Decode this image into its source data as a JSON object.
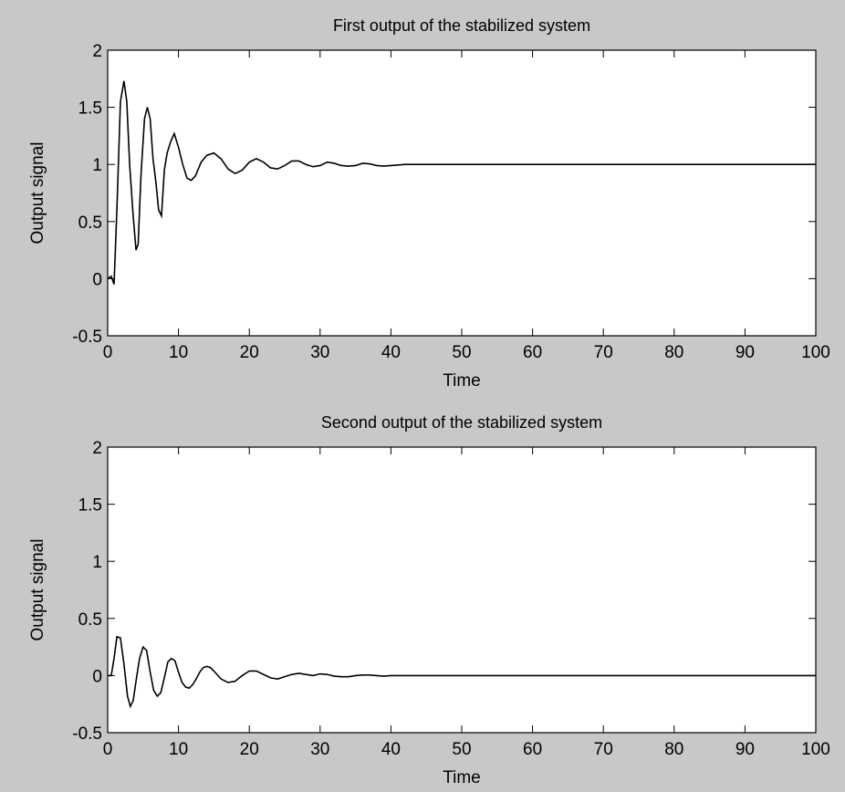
{
  "figure": {
    "background": "#c8c8c8",
    "plot_background": "#ffffff",
    "line_color": "#000000"
  },
  "chart_data": [
    {
      "type": "line",
      "title": "First output of the stabilized system",
      "xlabel": "Time",
      "ylabel": "Output signal",
      "xlim": [
        0,
        100
      ],
      "ylim": [
        -0.5,
        2
      ],
      "grid": false,
      "xticks": [
        0,
        10,
        20,
        30,
        40,
        50,
        60,
        70,
        80,
        90,
        100
      ],
      "xtick_labels": [
        "0",
        "10",
        "20",
        "30",
        "40",
        "50",
        "60",
        "70",
        "80",
        "90",
        "100"
      ],
      "yticks": [
        -0.5,
        0,
        0.5,
        1,
        1.5,
        2
      ],
      "ytick_labels": [
        "-0.5",
        "0",
        "0.5",
        "1",
        "1.5",
        "2"
      ],
      "series": [
        {
          "x": [
            0,
            0.5,
            0.9,
            1.3,
            1.8,
            2.3,
            2.7,
            3.1,
            3.6,
            4.0,
            4.3,
            4.7,
            5.2,
            5.6,
            6.0,
            6.4,
            6.8,
            7.2,
            7.6,
            8.0,
            8.4,
            8.9,
            9.4,
            10.0,
            10.6,
            11.2,
            11.8,
            12.4,
            13.2,
            14.0,
            15.0,
            16.0,
            17.0,
            18.0,
            19.0,
            20.0,
            21.0,
            22.0,
            23.0,
            24.0,
            25.0,
            26.0,
            27.0,
            28.0,
            29.0,
            30.0,
            31.0,
            32.0,
            33.0,
            34.0,
            35.0,
            36.0,
            37.0,
            38.0,
            39.0,
            40.0,
            42.0,
            50.0,
            60.0,
            70.0,
            80.0,
            90.0,
            100.0
          ],
          "y": [
            0,
            0.02,
            -0.05,
            0.6,
            1.55,
            1.73,
            1.55,
            1.0,
            0.55,
            0.25,
            0.3,
            0.9,
            1.4,
            1.5,
            1.4,
            1.05,
            0.85,
            0.6,
            0.55,
            0.95,
            1.1,
            1.2,
            1.27,
            1.15,
            1.0,
            0.88,
            0.86,
            0.9,
            1.02,
            1.08,
            1.1,
            1.05,
            0.96,
            0.92,
            0.95,
            1.02,
            1.05,
            1.02,
            0.97,
            0.96,
            0.99,
            1.03,
            1.03,
            1.0,
            0.98,
            0.99,
            1.02,
            1.01,
            0.99,
            0.985,
            0.99,
            1.01,
            1.005,
            0.99,
            0.985,
            0.99,
            1.0,
            1.0,
            1.0,
            1.0,
            1.0,
            1.0,
            1.0
          ]
        }
      ]
    },
    {
      "type": "line",
      "title": "Second output of the stabilized system",
      "xlabel": "Time",
      "ylabel": "Output signal",
      "xlim": [
        0,
        100
      ],
      "ylim": [
        -0.5,
        2
      ],
      "grid": false,
      "xticks": [
        0,
        10,
        20,
        30,
        40,
        50,
        60,
        70,
        80,
        90,
        100
      ],
      "xtick_labels": [
        "0",
        "10",
        "20",
        "30",
        "40",
        "50",
        "60",
        "70",
        "80",
        "90",
        "100"
      ],
      "yticks": [
        -0.5,
        0,
        0.5,
        1,
        1.5,
        2
      ],
      "ytick_labels": [
        "-0.5",
        "0",
        "0.5",
        "1",
        "1.5",
        "2"
      ],
      "series": [
        {
          "x": [
            0,
            0.5,
            0.9,
            1.3,
            1.8,
            2.3,
            2.8,
            3.2,
            3.6,
            4.0,
            4.5,
            5.0,
            5.5,
            6.0,
            6.5,
            7.0,
            7.5,
            8.0,
            8.5,
            9.0,
            9.5,
            10.0,
            10.5,
            11.0,
            11.5,
            12.0,
            12.5,
            13.0,
            13.5,
            14.0,
            14.5,
            15.0,
            16.0,
            17.0,
            18.0,
            19.0,
            20.0,
            21.0,
            22.0,
            23.0,
            24.0,
            25.0,
            26.0,
            27.0,
            28.0,
            29.0,
            30.0,
            31.0,
            32.0,
            33.0,
            34.0,
            35.0,
            36.0,
            37.0,
            38.0,
            39.0,
            40.0,
            50.0,
            60.0,
            70.0,
            80.0,
            90.0,
            100.0
          ],
          "y": [
            0,
            0.0,
            0.15,
            0.34,
            0.33,
            0.1,
            -0.18,
            -0.27,
            -0.22,
            -0.05,
            0.15,
            0.25,
            0.22,
            0.03,
            -0.13,
            -0.18,
            -0.15,
            -0.02,
            0.12,
            0.15,
            0.13,
            0.03,
            -0.06,
            -0.1,
            -0.11,
            -0.08,
            -0.03,
            0.03,
            0.07,
            0.08,
            0.07,
            0.04,
            -0.03,
            -0.06,
            -0.05,
            0.0,
            0.04,
            0.04,
            0.01,
            -0.02,
            -0.03,
            -0.01,
            0.01,
            0.02,
            0.01,
            0.0,
            0.015,
            0.01,
            -0.005,
            -0.01,
            -0.01,
            0.0,
            0.005,
            0.005,
            0.0,
            -0.005,
            0.0,
            0.0,
            0.0,
            0.0,
            0.0,
            0.0,
            0.0
          ]
        }
      ]
    }
  ]
}
